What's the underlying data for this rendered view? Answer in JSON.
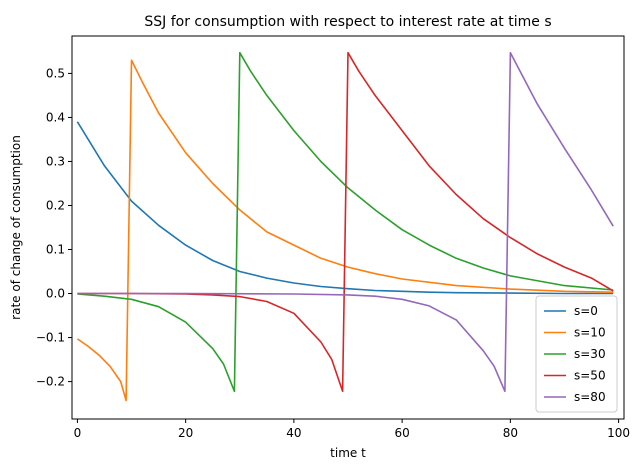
{
  "chart_data": {
    "type": "line",
    "title": "SSJ for consumption with respect to interest rate at time s",
    "xlabel": "time t",
    "ylabel": "rate of change of consumption",
    "xlim": [
      -1,
      101
    ],
    "ylim": [
      -0.285,
      0.585
    ],
    "xticks": [
      0,
      20,
      40,
      60,
      80,
      100
    ],
    "yticks": [
      -0.2,
      -0.1,
      0.0,
      0.1,
      0.2,
      0.3,
      0.4,
      0.5
    ],
    "xtick_labels": [
      "0",
      "20",
      "40",
      "60",
      "80",
      "100"
    ],
    "ytick_labels": [
      "−0.2",
      "−0.1",
      "0.0",
      "0.1",
      "0.2",
      "0.3",
      "0.4",
      "0.5"
    ],
    "grid": false,
    "legend_position": "lower-right",
    "series": [
      {
        "name": "s=0",
        "color": "#1f77b4",
        "x": [
          0,
          5,
          10,
          15,
          20,
          25,
          30,
          35,
          40,
          45,
          50,
          55,
          60,
          65,
          70,
          80,
          90,
          99
        ],
        "y": [
          0.39,
          0.29,
          0.21,
          0.155,
          0.11,
          0.075,
          0.05,
          0.035,
          0.024,
          0.016,
          0.011,
          0.007,
          0.005,
          0.003,
          0.002,
          0.001,
          0.0,
          0.0
        ]
      },
      {
        "name": "s=10",
        "color": "#ff7f0e",
        "x": [
          0,
          2,
          4,
          6,
          8,
          9,
          10,
          12,
          15,
          20,
          25,
          30,
          35,
          40,
          45,
          50,
          55,
          60,
          70,
          80,
          90,
          99
        ],
        "y": [
          -0.103,
          -0.12,
          -0.14,
          -0.165,
          -0.2,
          -0.243,
          0.53,
          0.48,
          0.41,
          0.32,
          0.25,
          0.19,
          0.14,
          0.11,
          0.08,
          0.06,
          0.045,
          0.033,
          0.018,
          0.01,
          0.005,
          0.003
        ]
      },
      {
        "name": "s=30",
        "color": "#2ca02c",
        "x": [
          0,
          5,
          10,
          15,
          20,
          25,
          27,
          29,
          30,
          32,
          35,
          40,
          45,
          50,
          55,
          60,
          65,
          70,
          75,
          80,
          90,
          99
        ],
        "y": [
          -0.001,
          -0.006,
          -0.013,
          -0.03,
          -0.065,
          -0.125,
          -0.16,
          -0.222,
          0.547,
          0.505,
          0.45,
          0.37,
          0.3,
          0.24,
          0.19,
          0.145,
          0.11,
          0.08,
          0.058,
          0.04,
          0.018,
          0.008
        ]
      },
      {
        "name": "s=50",
        "color": "#d62728",
        "x": [
          0,
          10,
          20,
          25,
          30,
          35,
          40,
          45,
          47,
          49,
          50,
          52,
          55,
          60,
          65,
          70,
          75,
          80,
          85,
          90,
          95,
          99
        ],
        "y": [
          0.0,
          0.0,
          -0.001,
          -0.003,
          -0.007,
          -0.018,
          -0.045,
          -0.11,
          -0.15,
          -0.222,
          0.547,
          0.505,
          0.45,
          0.37,
          0.29,
          0.225,
          0.17,
          0.127,
          0.09,
          0.06,
          0.035,
          0.006
        ]
      },
      {
        "name": "s=80",
        "color": "#9467bd",
        "x": [
          0,
          20,
          40,
          50,
          55,
          60,
          65,
          70,
          75,
          77,
          79,
          80,
          82,
          85,
          90,
          95,
          99
        ],
        "y": [
          0.0,
          0.0,
          -0.001,
          -0.003,
          -0.006,
          -0.013,
          -0.028,
          -0.06,
          -0.13,
          -0.165,
          -0.222,
          0.547,
          0.5,
          0.43,
          0.33,
          0.235,
          0.153
        ]
      }
    ]
  }
}
